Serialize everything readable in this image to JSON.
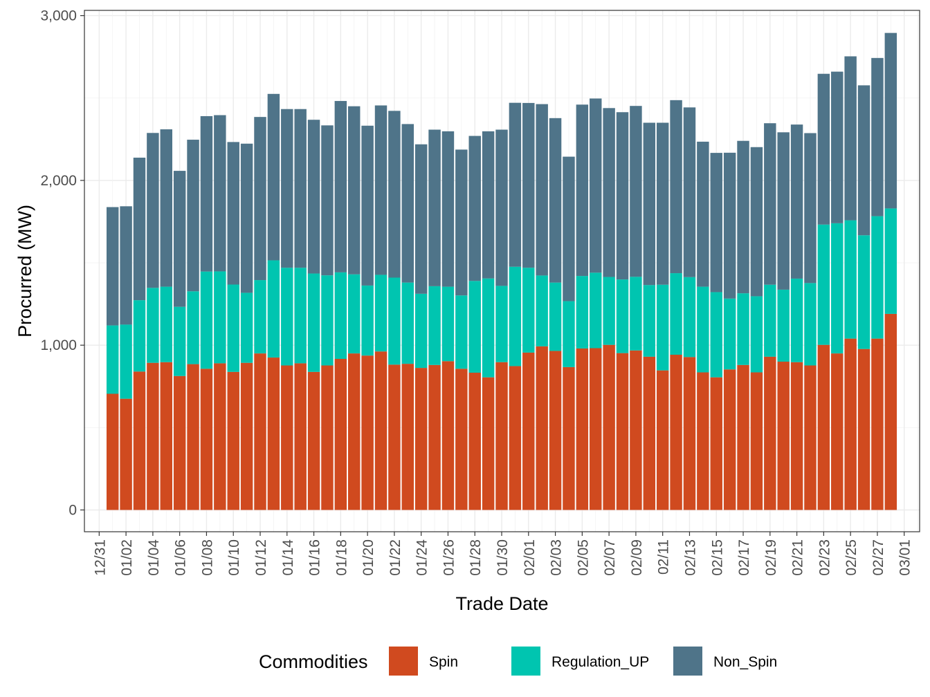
{
  "chart_data": {
    "type": "bar",
    "stacked": true,
    "title": "",
    "xlabel": "Trade Date",
    "ylabel": "Procurred (MW)",
    "ylim": [
      -140,
      3000
    ],
    "yticks": [
      0,
      1000,
      2000,
      3000
    ],
    "ytick_labels": [
      "0",
      "1,000",
      "2,000",
      "3,000"
    ],
    "xlim": [
      "12/30",
      "03/02"
    ],
    "xtick_labels": [
      "12/31",
      "01/02",
      "01/04",
      "01/06",
      "01/08",
      "01/10",
      "01/12",
      "01/14",
      "01/16",
      "01/18",
      "01/20",
      "01/22",
      "01/24",
      "01/26",
      "01/28",
      "01/30",
      "02/01",
      "02/03",
      "02/05",
      "02/07",
      "02/09",
      "02/11",
      "02/13",
      "02/15",
      "02/17",
      "02/19",
      "02/21",
      "02/23",
      "02/25",
      "02/27",
      "03/01"
    ],
    "grid": true,
    "legend": {
      "title": "Commodities",
      "position": "bottom"
    },
    "categories": [
      "01/01",
      "01/02",
      "01/03",
      "01/04",
      "01/05",
      "01/06",
      "01/07",
      "01/08",
      "01/09",
      "01/10",
      "01/11",
      "01/12",
      "01/13",
      "01/14",
      "01/15",
      "01/16",
      "01/17",
      "01/18",
      "01/19",
      "01/20",
      "01/21",
      "01/22",
      "01/23",
      "01/24",
      "01/25",
      "01/26",
      "01/27",
      "01/28",
      "01/29",
      "01/30",
      "01/31",
      "02/01",
      "02/02",
      "02/03",
      "02/04",
      "02/05",
      "02/06",
      "02/07",
      "02/08",
      "02/09",
      "02/10",
      "02/11",
      "02/12",
      "02/13",
      "02/14",
      "02/15",
      "02/16",
      "02/17",
      "02/18",
      "02/19",
      "02/20",
      "02/21",
      "02/22",
      "02/23",
      "02/24",
      "02/25",
      "02/26",
      "02/27",
      "02/28"
    ],
    "series": [
      {
        "name": "Spin",
        "color": "#d04a1f",
        "values": [
          705,
          675,
          840,
          893,
          897,
          813,
          885,
          857,
          890,
          838,
          893,
          950,
          925,
          877,
          890,
          838,
          877,
          917,
          950,
          937,
          962,
          882,
          887,
          862,
          880,
          903,
          857,
          833,
          805,
          897,
          873,
          955,
          993,
          965,
          867,
          980,
          982,
          1002,
          952,
          968,
          930,
          847,
          942,
          928,
          835,
          805,
          853,
          880,
          835,
          930,
          900,
          897,
          877,
          1002,
          950,
          1040,
          977,
          1040,
          1190
        ]
      },
      {
        "name": "Regulation_UP",
        "color": "#00c5b0",
        "values": [
          415,
          450,
          433,
          455,
          458,
          420,
          442,
          590,
          558,
          530,
          425,
          445,
          590,
          593,
          580,
          597,
          547,
          525,
          480,
          425,
          465,
          528,
          493,
          450,
          478,
          452,
          445,
          557,
          600,
          463,
          603,
          515,
          430,
          415,
          400,
          440,
          458,
          412,
          447,
          447,
          435,
          520,
          495,
          485,
          520,
          517,
          430,
          435,
          462,
          437,
          437,
          507,
          500,
          730,
          790,
          718,
          690,
          743,
          640
        ]
      },
      {
        "name": "Non_Spin",
        "color": "#4f7489",
        "values": [
          718,
          718,
          865,
          940,
          955,
          825,
          920,
          943,
          948,
          865,
          905,
          990,
          1010,
          963,
          963,
          933,
          910,
          1040,
          1020,
          970,
          1028,
          1012,
          962,
          907,
          950,
          943,
          885,
          880,
          893,
          948,
          995,
          1000,
          1040,
          998,
          877,
          1040,
          1057,
          1025,
          1015,
          1037,
          985,
          983,
          1050,
          1030,
          880,
          845,
          885,
          925,
          905,
          980,
          955,
          935,
          910,
          915,
          920,
          995,
          910,
          960,
          1065
        ]
      }
    ]
  }
}
